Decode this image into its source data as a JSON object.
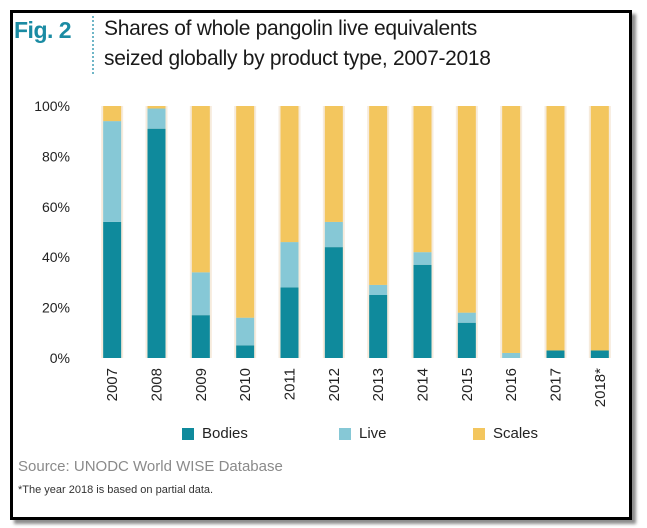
{
  "figure": {
    "label": "Fig. 2",
    "title_line1": "Shares of whole pangolin live equivalents",
    "title_line2": "seized globally by product type, 2007-2018",
    "source": "Source: UNODC World WISE Database",
    "note": "*The year 2018 is based on partial data."
  },
  "colors": {
    "background_band": "#f6ebdc",
    "bodies": "#0f8a9c",
    "live": "#86c8d6",
    "scales": "#f3c65e",
    "label_accent": "#1a8ba3"
  },
  "chart_data": {
    "type": "bar",
    "stacked": true,
    "categories": [
      "2007",
      "2008",
      "2009",
      "2010",
      "2011",
      "2012",
      "2013",
      "2014",
      "2015",
      "2016",
      "2017",
      "2018*"
    ],
    "series": [
      {
        "name": "Bodies",
        "values": [
          54,
          91,
          17,
          5,
          28,
          44,
          25,
          37,
          14,
          0,
          3,
          3
        ]
      },
      {
        "name": "Live",
        "values": [
          40,
          8,
          17,
          11,
          18,
          10,
          4,
          5,
          4,
          2,
          0,
          0
        ]
      },
      {
        "name": "Scales",
        "values": [
          6,
          1,
          66,
          84,
          54,
          46,
          71,
          58,
          82,
          98,
          97,
          97
        ]
      }
    ],
    "y_ticks": [
      "0%",
      "20%",
      "40%",
      "60%",
      "80%",
      "100%"
    ],
    "ylim": [
      0,
      100
    ],
    "ylabel": "",
    "xlabel": "",
    "legend_position": "bottom",
    "grid": false
  }
}
